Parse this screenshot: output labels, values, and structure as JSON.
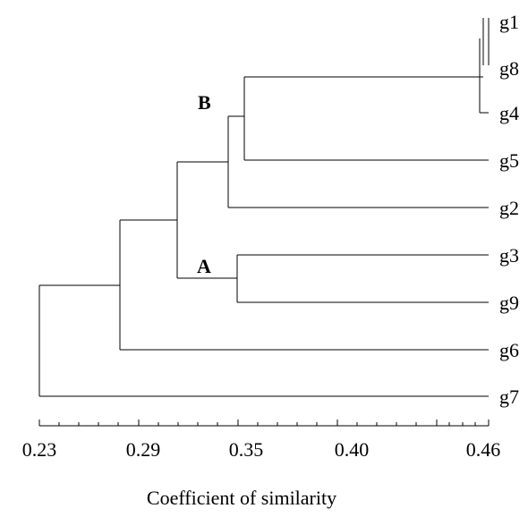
{
  "dendrogram": {
    "axis": {
      "title": "Coefficient of similarity",
      "tick_labels": [
        "0.23",
        "0.29",
        "0.35",
        "0.40",
        "0.46"
      ]
    },
    "leaves": [
      "g1",
      "g8",
      "g4",
      "g5",
      "g2",
      "g3",
      "g9",
      "g6",
      "g7"
    ],
    "cluster_labels": [
      "B",
      "A"
    ],
    "merges": [
      {
        "members": [
          "g1",
          "g8"
        ],
        "similarity": 0.46
      },
      {
        "members": [
          "g1-g8",
          "g4"
        ],
        "similarity": 0.455
      },
      {
        "members": [
          "g1-g8-g4",
          "g5"
        ],
        "similarity": 0.34
      },
      {
        "members": [
          "g1-g8-g4-g5",
          "g2"
        ],
        "similarity": 0.33,
        "label": "B"
      },
      {
        "members": [
          "g3",
          "g9"
        ],
        "similarity": 0.337,
        "label": "A"
      },
      {
        "members": [
          "B",
          "A"
        ],
        "similarity": 0.3
      },
      {
        "members": [
          "B-A",
          "g6"
        ],
        "similarity": 0.274
      },
      {
        "members": [
          "B-A-g6",
          "g7"
        ],
        "similarity": 0.23
      }
    ]
  }
}
